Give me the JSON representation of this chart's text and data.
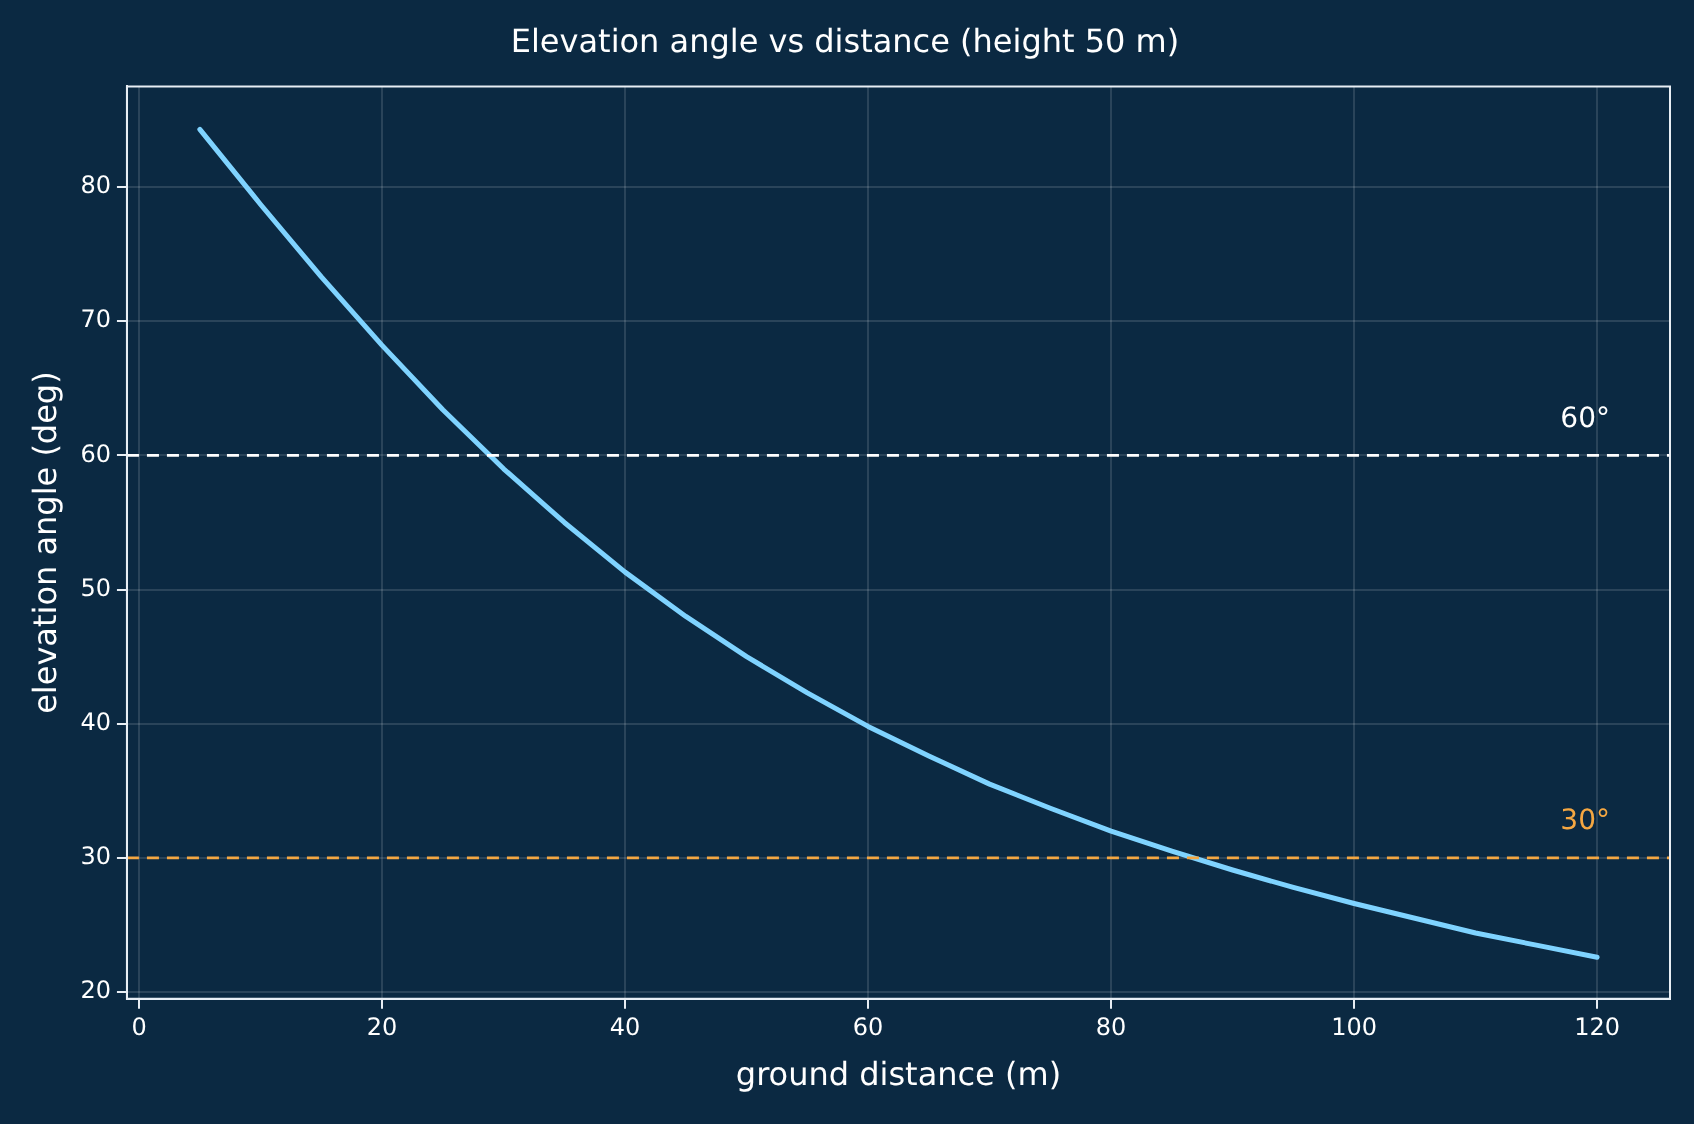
{
  "chart_data": {
    "type": "line",
    "title": "Elevation angle vs distance (height 50 m)",
    "xlabel": "ground distance (m)",
    "ylabel": "elevation angle (deg)",
    "x": [
      5,
      10,
      15,
      20,
      25,
      30,
      35,
      40,
      45,
      50,
      55,
      60,
      65,
      70,
      75,
      80,
      85,
      90,
      95,
      100,
      105,
      110,
      115,
      120
    ],
    "series": [
      {
        "color": "#7fd3ff",
        "values": [
          84.3,
          78.7,
          73.3,
          68.2,
          63.4,
          59.0,
          55.0,
          51.3,
          48.0,
          45.0,
          42.3,
          39.8,
          37.6,
          35.5,
          33.7,
          32.0,
          30.5,
          29.1,
          27.8,
          26.6,
          25.5,
          24.4,
          23.5,
          22.6
        ]
      }
    ],
    "xlim": [
      -1,
      126
    ],
    "xticks": [
      0,
      20,
      40,
      60,
      80,
      100,
      120
    ],
    "ylim": [
      19.5,
      87.5
    ],
    "yticks": [
      20,
      30,
      40,
      50,
      60,
      70,
      80
    ],
    "grid": true,
    "legend": false,
    "marker": "none",
    "line_style": "solid",
    "ref_lines": [
      {
        "axis": "y",
        "value": 60,
        "label": "60°",
        "color": "#ffffff",
        "line_style": "dashed"
      },
      {
        "axis": "y",
        "value": 30,
        "label": "30°",
        "color": "#f5a742",
        "line_style": "dashed"
      }
    ]
  }
}
